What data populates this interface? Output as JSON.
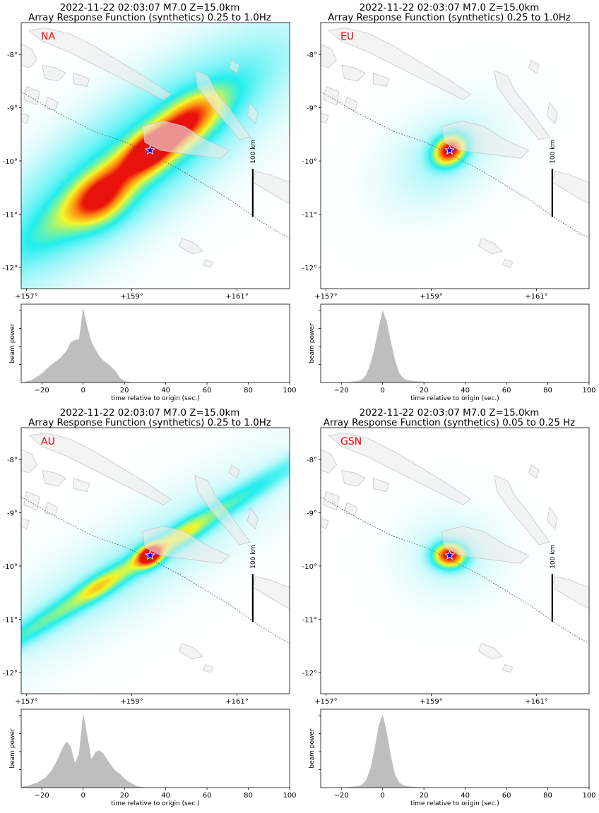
{
  "panels": [
    {
      "title1": "2022-11-22 02:03:07 M7.0 Z=15.0km",
      "title2": "Array Response Function (synthetics) 0.25 to 1.0Hz",
      "array_label": "NA",
      "scale_bar_label": "100 km"
    },
    {
      "title1": "2022-11-22 02:03:07 M7.0 Z=15.0km",
      "title2": "Array Response Function (synthetics) 0.25 to 1.0Hz",
      "array_label": "EU",
      "scale_bar_label": "100 km"
    },
    {
      "title1": "2022-11-22 02:03:07 M7.0 Z=15.0km",
      "title2": "Array Response Function (synthetics) 0.25 to 1.0Hz",
      "array_label": "AU",
      "scale_bar_label": "100 km"
    },
    {
      "title1": "2022-11-22 02:03:07 M7.0 Z=15.0km",
      "title2": "Array Response Function (synthetics) 0.05 to 0.25 Hz",
      "array_label": "GSN",
      "scale_bar_label": "100 km"
    }
  ],
  "chart_data": [
    {
      "type": "heatmap",
      "array": "NA",
      "lon_range": [
        156.9,
        162.0
      ],
      "lat_range": [
        -12.4,
        -7.4
      ],
      "lon_ticks": [
        157,
        159,
        161
      ],
      "lon_tick_labels": [
        "+157°",
        "+159°",
        "+161°"
      ],
      "lat_ticks": [
        -8,
        -9,
        -10,
        -11,
        -12
      ],
      "lat_tick_labels": [
        "-8°",
        "-9°",
        "-10°",
        "-11°",
        "-12°"
      ],
      "epicenter": {
        "lon": 159.35,
        "lat": -9.8
      },
      "colormap": [
        "#ffffff",
        "#dffbfd",
        "#22eef0",
        "#f4f82a",
        "#ff8a10",
        "#e8110b"
      ],
      "blobs": [
        {
          "lon": 159.0,
          "lat": -10.1,
          "slon": 1.35,
          "slat": 0.26,
          "rot": 37,
          "amp": 0.55
        },
        {
          "lon": 159.35,
          "lat": -9.8,
          "slon": 0.35,
          "slat": 0.2,
          "rot": 37,
          "amp": 0.62
        },
        {
          "lon": 158.4,
          "lat": -10.75,
          "slon": 0.4,
          "slat": 0.28,
          "rot": 37,
          "amp": 0.5
        },
        {
          "lon": 160.05,
          "lat": -9.25,
          "slon": 0.5,
          "slat": 0.25,
          "rot": 37,
          "amp": 0.5
        },
        {
          "lon": 159.0,
          "lat": -10.0,
          "slon": 2.6,
          "slat": 0.75,
          "rot": 37,
          "amp": 0.3
        }
      ]
    },
    {
      "type": "heatmap",
      "array": "EU",
      "lon_range": [
        156.9,
        162.0
      ],
      "lat_range": [
        -12.4,
        -7.4
      ],
      "lon_ticks": [
        157,
        159,
        161
      ],
      "lon_tick_labels": [
        "+157°",
        "+159°",
        "+161°"
      ],
      "lat_ticks": [
        -8,
        -9,
        -10,
        -11,
        -12
      ],
      "lat_tick_labels": [
        "-8°",
        "-9°",
        "-10°",
        "-11°",
        "-12°"
      ],
      "epicenter": {
        "lon": 159.35,
        "lat": -9.8
      },
      "colormap": [
        "#ffffff",
        "#dffbfd",
        "#22eef0",
        "#f4f82a",
        "#ff8a10",
        "#e8110b"
      ],
      "blobs": [
        {
          "lon": 159.35,
          "lat": -9.8,
          "slon": 0.22,
          "slat": 0.17,
          "rot": 35,
          "amp": 1.0
        },
        {
          "lon": 159.2,
          "lat": -9.95,
          "slon": 0.9,
          "slat": 0.6,
          "rot": 35,
          "amp": 0.12
        }
      ]
    },
    {
      "type": "heatmap",
      "array": "AU",
      "lon_range": [
        156.9,
        162.0
      ],
      "lat_range": [
        -12.4,
        -7.4
      ],
      "lon_ticks": [
        157,
        159,
        161
      ],
      "lon_tick_labels": [
        "+157°",
        "+159°",
        "+161°"
      ],
      "lat_ticks": [
        -8,
        -9,
        -10,
        -11,
        -12
      ],
      "lat_tick_labels": [
        "-8°",
        "-9°",
        "-10°",
        "-11°",
        "-12°"
      ],
      "epicenter": {
        "lon": 159.35,
        "lat": -9.8
      },
      "colormap": [
        "#ffffff",
        "#dffbfd",
        "#22eef0",
        "#f4f82a",
        "#ff8a10",
        "#e8110b"
      ],
      "blobs": [
        {
          "lon": 159.35,
          "lat": -9.8,
          "slon": 0.17,
          "slat": 0.12,
          "rot": 32,
          "amp": 1.0
        },
        {
          "lon": 159.0,
          "lat": -10.0,
          "slon": 2.7,
          "slat": 0.14,
          "rot": 32,
          "amp": 0.4
        },
        {
          "lon": 158.35,
          "lat": -10.4,
          "slon": 0.28,
          "slat": 0.14,
          "rot": 32,
          "amp": 0.18
        },
        {
          "lon": 160.05,
          "lat": -9.35,
          "slon": 0.3,
          "slat": 0.14,
          "rot": 32,
          "amp": 0.14
        },
        {
          "lon": 159.0,
          "lat": -10.0,
          "slon": 2.8,
          "slat": 0.6,
          "rot": 32,
          "amp": 0.12
        }
      ]
    },
    {
      "type": "heatmap",
      "array": "GSN",
      "lon_range": [
        156.9,
        162.0
      ],
      "lat_range": [
        -12.4,
        -7.4
      ],
      "lon_ticks": [
        157,
        159,
        161
      ],
      "lon_tick_labels": [
        "+157°",
        "+159°",
        "+161°"
      ],
      "lat_ticks": [
        -8,
        -9,
        -10,
        -11,
        -12
      ],
      "lat_tick_labels": [
        "-8°",
        "-9°",
        "-10°",
        "-11°",
        "-12°"
      ],
      "epicenter": {
        "lon": 159.35,
        "lat": -9.8
      },
      "colormap": [
        "#ffffff",
        "#dffbfd",
        "#22eef0",
        "#f4f82a",
        "#ff8a10",
        "#e8110b"
      ],
      "blobs": [
        {
          "lon": 159.35,
          "lat": -9.8,
          "slon": 0.2,
          "slat": 0.15,
          "rot": 0,
          "amp": 1.0
        },
        {
          "lon": 159.35,
          "lat": -9.8,
          "slon": 0.7,
          "slat": 0.6,
          "rot": 0,
          "amp": 0.1
        }
      ]
    },
    {
      "type": "area",
      "array": "NA",
      "xlabel": "time relative to origin (sec.)",
      "ylabel": "beam power",
      "xlim": [
        -30,
        100
      ],
      "ylim": [
        0,
        1.05
      ],
      "x_ticks": [
        -20,
        0,
        20,
        40,
        60,
        80,
        100
      ],
      "x": [
        -30,
        -25,
        -20,
        -17,
        -14,
        -11,
        -8,
        -6,
        -4,
        -2,
        0,
        2,
        4,
        6,
        8,
        10,
        12,
        14,
        16,
        18,
        20,
        22,
        25,
        30,
        40,
        100
      ],
      "y": [
        0,
        0.03,
        0.12,
        0.2,
        0.27,
        0.33,
        0.43,
        0.54,
        0.57,
        0.58,
        1.0,
        0.75,
        0.55,
        0.44,
        0.35,
        0.29,
        0.25,
        0.2,
        0.14,
        0.06,
        0.02,
        0.01,
        0,
        0,
        0,
        0
      ]
    },
    {
      "type": "area",
      "array": "EU",
      "xlabel": "time relative to origin (sec.)",
      "ylabel": "beam power",
      "xlim": [
        -30,
        100
      ],
      "ylim": [
        0,
        1.05
      ],
      "x_ticks": [
        -20,
        0,
        20,
        40,
        60,
        80,
        100
      ],
      "x": [
        -30,
        -20,
        -15,
        -12,
        -10,
        -8,
        -6,
        -4,
        -2,
        0,
        2,
        4,
        6,
        8,
        10,
        12,
        15,
        20,
        25,
        40,
        100
      ],
      "y": [
        0,
        0,
        0.01,
        0.02,
        0.04,
        0.1,
        0.25,
        0.45,
        0.72,
        0.97,
        0.82,
        0.55,
        0.3,
        0.13,
        0.06,
        0.03,
        0.02,
        0.01,
        0,
        0,
        0
      ]
    },
    {
      "type": "area",
      "array": "AU",
      "xlabel": "time relative to origin (sec.)",
      "ylabel": "beam power",
      "xlim": [
        -30,
        100
      ],
      "ylim": [
        0,
        1.05
      ],
      "x_ticks": [
        -20,
        0,
        20,
        40,
        60,
        80,
        100
      ],
      "x": [
        -30,
        -26,
        -22,
        -18,
        -15,
        -12,
        -10,
        -8,
        -6,
        -4,
        -2,
        0,
        2,
        4,
        6,
        8,
        10,
        12,
        14,
        16,
        18,
        20,
        22,
        24,
        26,
        30,
        40,
        100
      ],
      "y": [
        0.01,
        0.03,
        0.07,
        0.14,
        0.24,
        0.4,
        0.53,
        0.62,
        0.55,
        0.33,
        0.45,
        1.0,
        0.7,
        0.38,
        0.48,
        0.5,
        0.45,
        0.36,
        0.28,
        0.22,
        0.18,
        0.12,
        0.08,
        0.05,
        0.02,
        0,
        0,
        0
      ]
    },
    {
      "type": "area",
      "array": "GSN",
      "xlabel": "time relative to origin (sec.)",
      "ylabel": "beam power",
      "xlim": [
        -30,
        100
      ],
      "ylim": [
        0,
        1.05
      ],
      "x_ticks": [
        -20,
        0,
        20,
        40,
        60,
        80,
        100
      ],
      "x": [
        -30,
        -20,
        -15,
        -12,
        -10,
        -8,
        -6,
        -4,
        -2,
        0,
        2,
        4,
        6,
        8,
        10,
        12,
        15,
        20,
        40,
        100
      ],
      "y": [
        0,
        0,
        0.01,
        0.02,
        0.04,
        0.1,
        0.25,
        0.5,
        0.82,
        0.98,
        0.75,
        0.42,
        0.18,
        0.07,
        0.03,
        0.02,
        0.01,
        0,
        0,
        0
      ]
    }
  ],
  "style": {
    "label_color": "#ff0000",
    "star_color": "#0000ff",
    "land_fill": "#ebebeb",
    "land_stroke": "#c6c6c6",
    "trace_fill": "#bebebe"
  }
}
